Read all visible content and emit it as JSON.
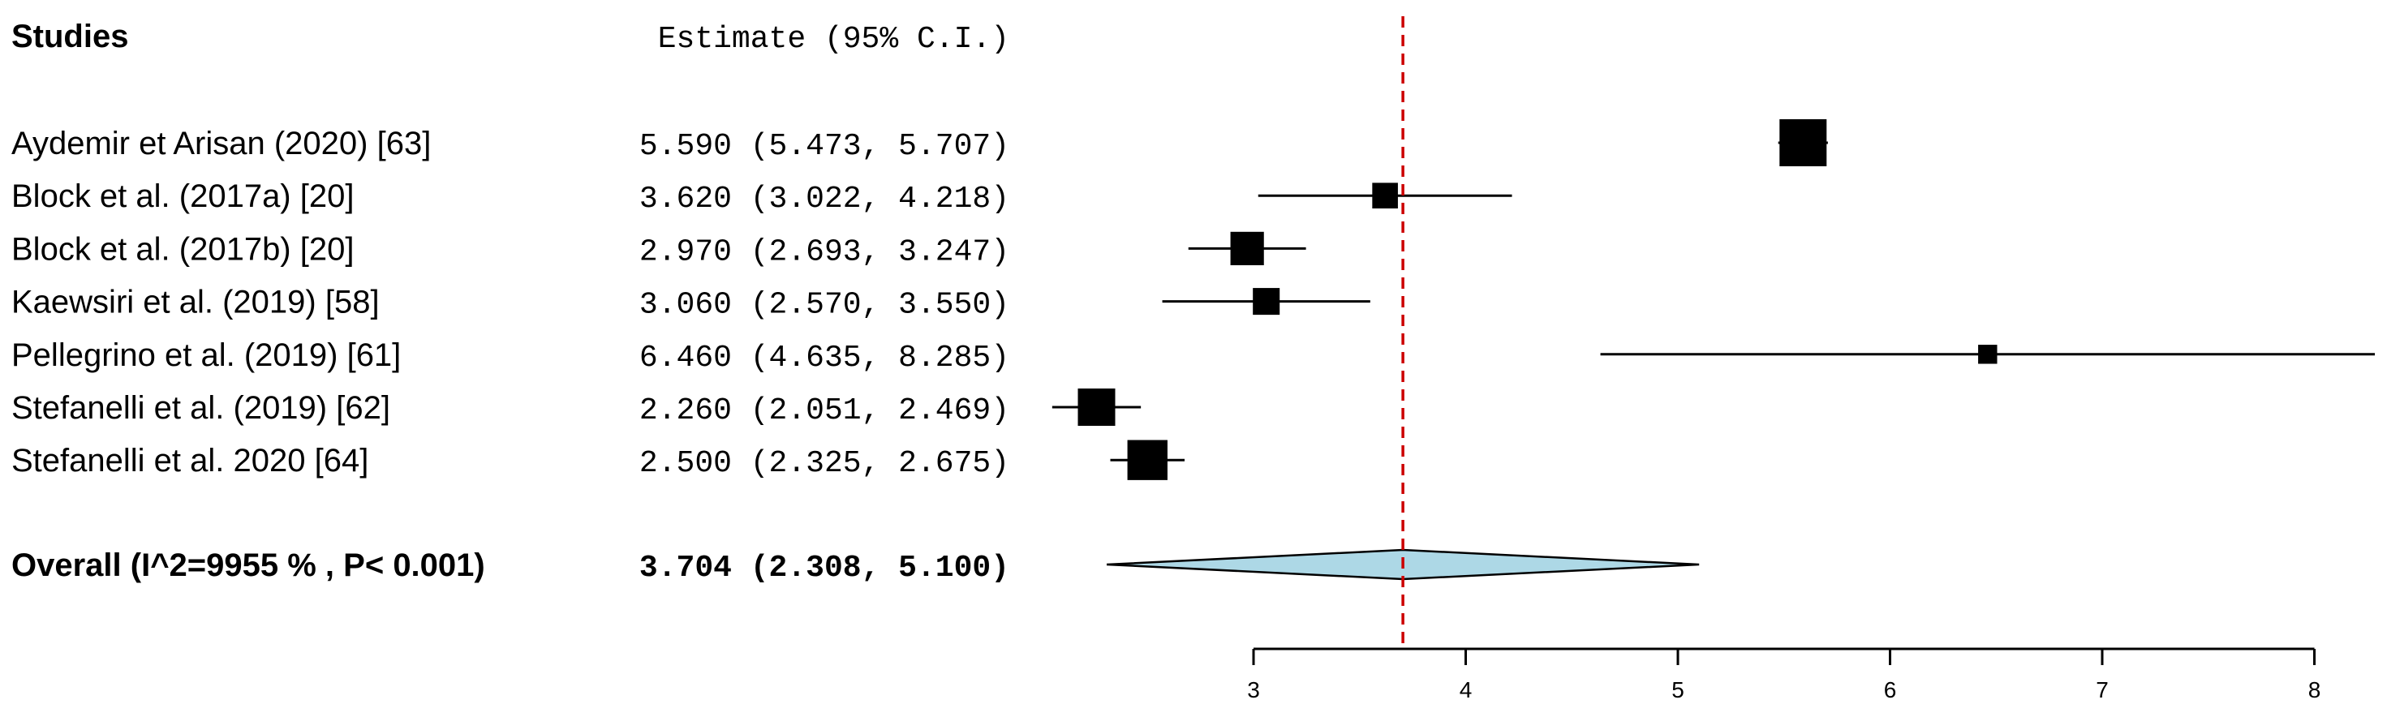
{
  "chart_data": {
    "type": "forest",
    "title": "",
    "xlabel": "",
    "ylabel": "",
    "xlim": [
      3,
      8
    ],
    "x_ticks": [
      "3",
      "4",
      "5",
      "6",
      "7",
      "8"
    ],
    "studies_header": "Studies",
    "estimate_header": "Estimate (95% C.I.)",
    "reference_line": 3.704,
    "reference_line_color": "#cc0000",
    "studies": [
      {
        "label": "Aydemir et Arisan (2020) [63]",
        "estimate_text": "5.590 (5.473, 5.707)",
        "estimate": 5.59,
        "lower": 5.473,
        "upper": 5.707,
        "weight": 1.0
      },
      {
        "label": "Block et al. (2017a) [20]",
        "estimate_text": "3.620 (3.022, 4.218)",
        "estimate": 3.62,
        "lower": 3.022,
        "upper": 4.218,
        "weight": 0.45
      },
      {
        "label": "Block et al. (2017b) [20]",
        "estimate_text": "2.970 (2.693, 3.247)",
        "estimate": 2.97,
        "lower": 2.693,
        "upper": 3.247,
        "weight": 0.65
      },
      {
        "label": "Kaewsiri et al. (2019) [58]",
        "estimate_text": "3.060 (2.570, 3.550)",
        "estimate": 3.06,
        "lower": 2.57,
        "upper": 3.55,
        "weight": 0.48
      },
      {
        "label": "Pellegrino et al. (2019) [61]",
        "estimate_text": "6.460 (4.635, 8.285)",
        "estimate": 6.46,
        "lower": 4.635,
        "upper": 8.285,
        "weight": 0.28
      },
      {
        "label": "Stefanelli et al. (2019) [62]",
        "estimate_text": "2.260 (2.051, 2.469)",
        "estimate": 2.26,
        "lower": 2.051,
        "upper": 2.469,
        "weight": 0.75
      },
      {
        "label": "Stefanelli et al. 2020  [64]",
        "estimate_text": "2.500 (2.325, 2.675)",
        "estimate": 2.5,
        "lower": 2.325,
        "upper": 2.675,
        "weight": 0.82
      }
    ],
    "overall": {
      "label": "Overall (I^2=9955 % , P< 0.001)",
      "estimate_text": "3.704 (2.308, 5.100)",
      "estimate": 3.704,
      "lower": 2.308,
      "upper": 5.1,
      "fill_color": "#add8e6"
    }
  }
}
